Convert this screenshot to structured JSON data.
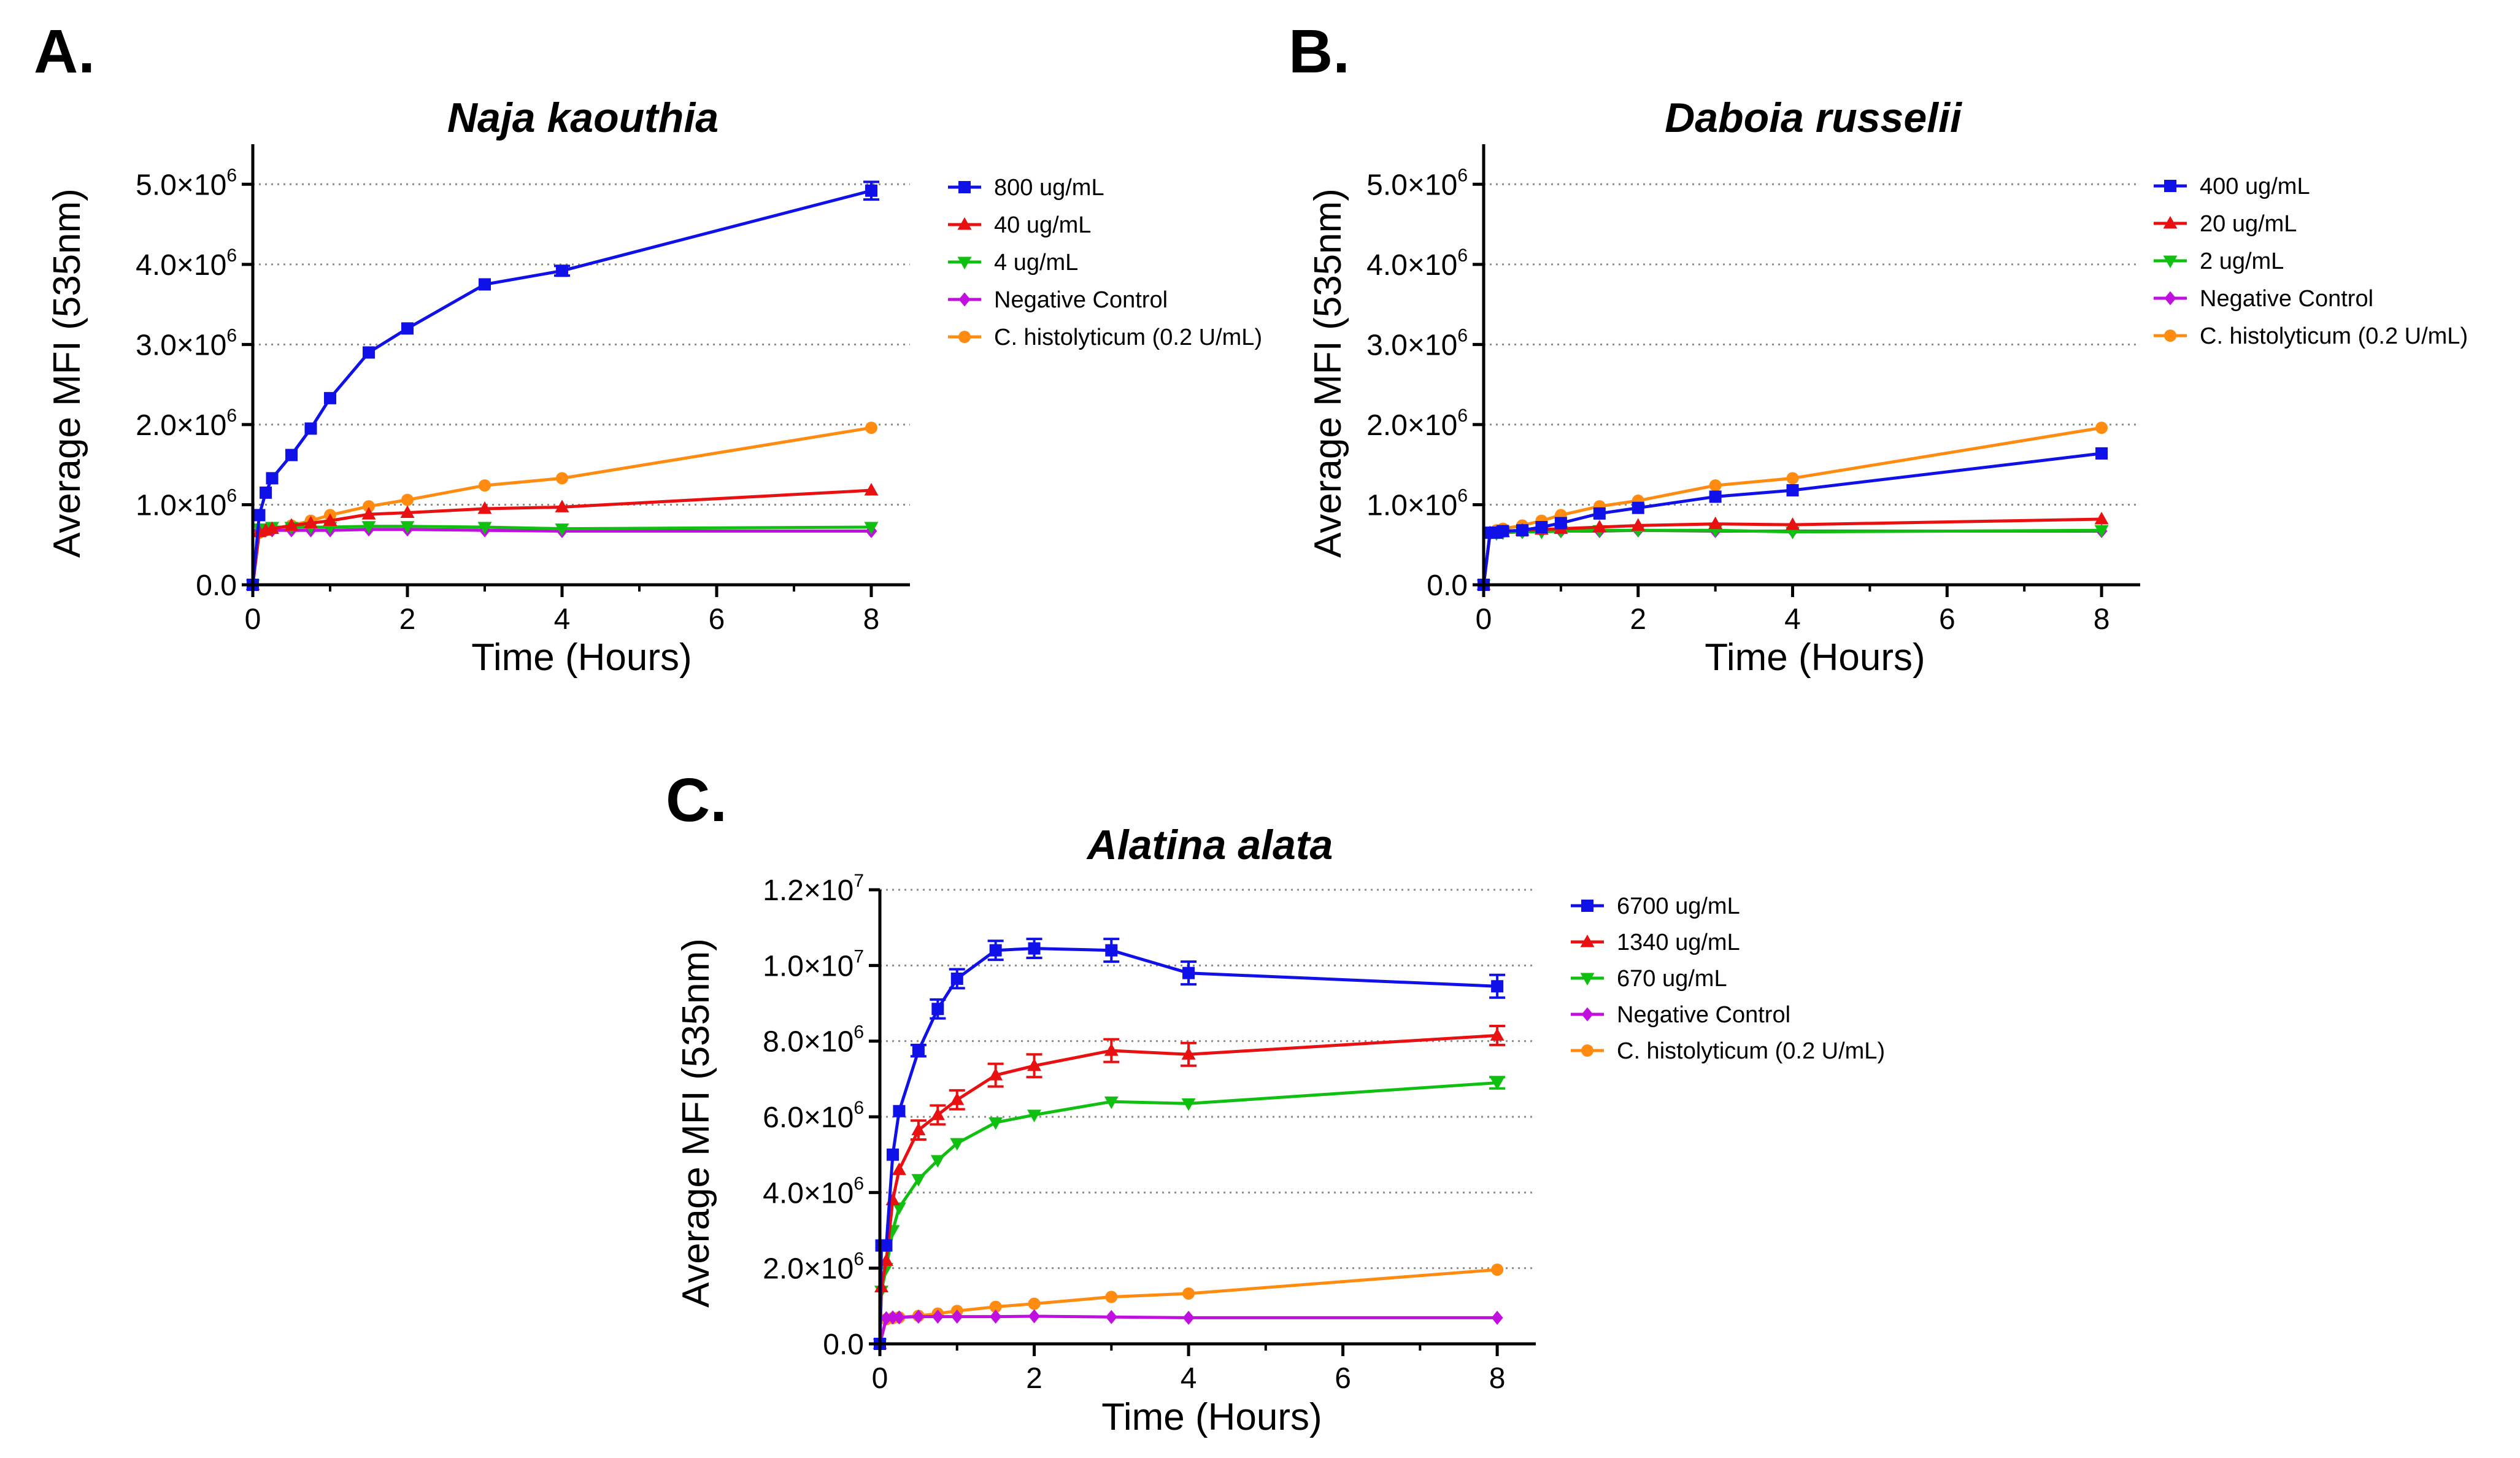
{
  "chart_data": [
    {
      "panel": "A.",
      "type": "line",
      "title": "Naja kaouthia",
      "xlabel": "Time (Hours)",
      "ylabel": "Average MFI (535nm)",
      "xlim": [
        0,
        8.5
      ],
      "ylim": [
        0,
        5500000
      ],
      "x_ticks": [
        0,
        2,
        4,
        6,
        8
      ],
      "x_tick_labels": [
        "0",
        "2",
        "4",
        "6",
        "8"
      ],
      "y_ticks": [
        {
          "value": 0,
          "mant": "0.0",
          "exp": ""
        },
        {
          "value": 1000000,
          "mant": "1.0×10",
          "exp": "6"
        },
        {
          "value": 2000000,
          "mant": "2.0×10",
          "exp": "6"
        },
        {
          "value": 3000000,
          "mant": "3.0×10",
          "exp": "6"
        },
        {
          "value": 4000000,
          "mant": "4.0×10",
          "exp": "6"
        },
        {
          "value": 5000000,
          "mant": "5.0×10",
          "exp": "6"
        }
      ],
      "grid": "horizontal dotted",
      "legend_position": "right",
      "series": [
        {
          "name": "800 ug/mL",
          "color": "#1010e8",
          "marker": "square",
          "x": [
            0,
            0.083,
            0.167,
            0.25,
            0.5,
            0.75,
            1,
            1.5,
            2,
            3,
            4,
            8
          ],
          "y": [
            0,
            870000,
            1150000,
            1330000,
            1620000,
            1950000,
            2330000,
            2900000,
            3200000,
            3750000,
            3920000,
            4920000
          ],
          "err": [
            0,
            0,
            0,
            0,
            0,
            0,
            0,
            0,
            0,
            0,
            60000,
            110000
          ]
        },
        {
          "name": "40 ug/mL",
          "color": "#e81010",
          "marker": "triangle-up",
          "x": [
            0,
            0.083,
            0.167,
            0.25,
            0.5,
            0.75,
            1,
            1.5,
            2,
            3,
            4,
            8
          ],
          "y": [
            0,
            660000,
            680000,
            700000,
            740000,
            770000,
            800000,
            880000,
            900000,
            950000,
            970000,
            1180000
          ]
        },
        {
          "name": "4 ug/mL",
          "color": "#10c010",
          "marker": "triangle-down",
          "x": [
            0,
            0.083,
            0.167,
            0.25,
            0.5,
            0.75,
            1,
            1.5,
            2,
            3,
            4,
            8
          ],
          "y": [
            0,
            700000,
            700000,
            720000,
            720000,
            720000,
            720000,
            730000,
            730000,
            720000,
            700000,
            720000
          ]
        },
        {
          "name": "Negative Control",
          "color": "#c010e0",
          "marker": "diamond",
          "x": [
            0,
            0.083,
            0.167,
            0.25,
            0.5,
            0.75,
            1,
            1.5,
            2,
            3,
            4,
            8
          ],
          "y": [
            0,
            680000,
            680000,
            680000,
            680000,
            680000,
            680000,
            690000,
            690000,
            680000,
            670000,
            670000
          ]
        },
        {
          "name": "C. histolyticum (0.2 U/mL)",
          "color": "#ff8c10",
          "marker": "circle",
          "x": [
            0,
            0.083,
            0.167,
            0.25,
            0.5,
            0.75,
            1,
            1.5,
            2,
            3,
            4,
            8
          ],
          "y": [
            0,
            650000,
            680000,
            700000,
            740000,
            800000,
            870000,
            980000,
            1060000,
            1240000,
            1330000,
            1960000
          ]
        }
      ]
    },
    {
      "panel": "B.",
      "type": "line",
      "title": "Daboia russelii",
      "xlabel": "Time (Hours)",
      "ylabel": "Average MFI (535nm)",
      "xlim": [
        0,
        8.5
      ],
      "ylim": [
        0,
        5500000
      ],
      "x_ticks": [
        0,
        2,
        4,
        6,
        8
      ],
      "x_tick_labels": [
        "0",
        "2",
        "4",
        "6",
        "8"
      ],
      "y_ticks": [
        {
          "value": 0,
          "mant": "0.0",
          "exp": ""
        },
        {
          "value": 1000000,
          "mant": "1.0×10",
          "exp": "6"
        },
        {
          "value": 2000000,
          "mant": "2.0×10",
          "exp": "6"
        },
        {
          "value": 3000000,
          "mant": "3.0×10",
          "exp": "6"
        },
        {
          "value": 4000000,
          "mant": "4.0×10",
          "exp": "6"
        },
        {
          "value": 5000000,
          "mant": "5.0×10",
          "exp": "6"
        }
      ],
      "grid": "horizontal dotted",
      "legend_position": "right",
      "series": [
        {
          "name": "400 ug/mL",
          "color": "#1010e8",
          "marker": "square",
          "x": [
            0,
            0.083,
            0.167,
            0.25,
            0.5,
            0.75,
            1,
            1.5,
            2,
            3,
            4,
            8
          ],
          "y": [
            0,
            650000,
            650000,
            670000,
            680000,
            720000,
            770000,
            890000,
            960000,
            1100000,
            1180000,
            1640000
          ]
        },
        {
          "name": "20 ug/mL",
          "color": "#e81010",
          "marker": "triangle-up",
          "x": [
            0,
            0.083,
            0.167,
            0.25,
            0.5,
            0.75,
            1,
            1.5,
            2,
            3,
            4,
            8
          ],
          "y": [
            0,
            640000,
            650000,
            660000,
            680000,
            690000,
            700000,
            720000,
            740000,
            760000,
            750000,
            820000
          ]
        },
        {
          "name": "2 ug/mL",
          "color": "#10c010",
          "marker": "triangle-down",
          "x": [
            0,
            0.083,
            0.167,
            0.25,
            0.5,
            0.75,
            1,
            1.5,
            2,
            3,
            4,
            8
          ],
          "y": [
            0,
            640000,
            640000,
            650000,
            660000,
            660000,
            670000,
            680000,
            680000,
            680000,
            660000,
            680000
          ]
        },
        {
          "name": "Negative Control",
          "color": "#c010e0",
          "marker": "diamond",
          "x": [
            0,
            0.083,
            0.167,
            0.25,
            0.5,
            0.75,
            1,
            1.5,
            2,
            3,
            4,
            8
          ],
          "y": [
            0,
            650000,
            650000,
            660000,
            660000,
            670000,
            670000,
            670000,
            680000,
            670000,
            670000,
            670000
          ]
        },
        {
          "name": "C. histolyticum (0.2 U/mL)",
          "color": "#ff8c10",
          "marker": "circle",
          "x": [
            0,
            0.083,
            0.167,
            0.25,
            0.5,
            0.75,
            1,
            1.5,
            2,
            3,
            4,
            8
          ],
          "y": [
            0,
            650000,
            680000,
            700000,
            740000,
            800000,
            870000,
            980000,
            1050000,
            1240000,
            1330000,
            1960000
          ]
        }
      ]
    },
    {
      "panel": "C.",
      "type": "line",
      "title": "Alatina alata",
      "xlabel": "Time (Hours)",
      "ylabel": "Average MFI (535nm)",
      "xlim": [
        0,
        8.5
      ],
      "ylim": [
        0,
        12000000
      ],
      "x_ticks": [
        0,
        2,
        4,
        6,
        8
      ],
      "x_tick_labels": [
        "0",
        "2",
        "4",
        "6",
        "8"
      ],
      "y_ticks": [
        {
          "value": 0,
          "mant": "0.0",
          "exp": ""
        },
        {
          "value": 2000000,
          "mant": "2.0×10",
          "exp": "6"
        },
        {
          "value": 4000000,
          "mant": "4.0×10",
          "exp": "6"
        },
        {
          "value": 6000000,
          "mant": "6.0×10",
          "exp": "6"
        },
        {
          "value": 8000000,
          "mant": "8.0×10",
          "exp": "6"
        },
        {
          "value": 10000000,
          "mant": "1.0×10",
          "exp": "7"
        },
        {
          "value": 12000000,
          "mant": "1.2×10",
          "exp": "7"
        }
      ],
      "grid": "horizontal dotted",
      "legend_position": "right",
      "series": [
        {
          "name": "6700 ug/mL",
          "color": "#1010e8",
          "marker": "square",
          "x": [
            0,
            0.02,
            0.083,
            0.167,
            0.25,
            0.5,
            0.75,
            1,
            1.5,
            2,
            3,
            4,
            8
          ],
          "y": [
            0,
            2600000,
            2600000,
            5000000,
            6150000,
            7750000,
            8850000,
            9650000,
            10400000,
            10450000,
            10400000,
            9800000,
            9450000
          ],
          "err": [
            0,
            0,
            0,
            0,
            0,
            150000,
            250000,
            250000,
            250000,
            250000,
            300000,
            300000,
            300000
          ]
        },
        {
          "name": "1340 ug/mL",
          "color": "#e81010",
          "marker": "triangle-up",
          "x": [
            0,
            0.02,
            0.083,
            0.167,
            0.25,
            0.5,
            0.75,
            1,
            1.5,
            2,
            3,
            4,
            8
          ],
          "y": [
            0,
            1500000,
            2200000,
            3800000,
            4600000,
            5650000,
            6050000,
            6450000,
            7100000,
            7350000,
            7750000,
            7650000,
            8150000
          ],
          "err": [
            0,
            0,
            0,
            0,
            0,
            250000,
            250000,
            250000,
            300000,
            300000,
            300000,
            300000,
            250000
          ]
        },
        {
          "name": "670 ug/mL",
          "color": "#10c010",
          "marker": "triangle-down",
          "x": [
            0,
            0.02,
            0.083,
            0.167,
            0.25,
            0.5,
            0.75,
            1,
            1.5,
            2,
            3,
            4,
            8
          ],
          "y": [
            0,
            1400000,
            2000000,
            3000000,
            3600000,
            4350000,
            4850000,
            5300000,
            5850000,
            6050000,
            6400000,
            6350000,
            6900000
          ],
          "err": [
            0,
            0,
            0,
            0,
            0,
            0,
            0,
            0,
            0,
            0,
            0,
            0,
            150000
          ]
        },
        {
          "name": "Negative Control",
          "color": "#c010e0",
          "marker": "diamond",
          "x": [
            0,
            0.083,
            0.167,
            0.25,
            0.5,
            0.75,
            1,
            1.5,
            2,
            3,
            4,
            8
          ],
          "y": [
            0,
            680000,
            700000,
            700000,
            720000,
            720000,
            720000,
            720000,
            730000,
            710000,
            690000,
            690000
          ]
        },
        {
          "name": "C. histolyticum (0.2 U/mL)",
          "color": "#ff8c10",
          "marker": "circle",
          "x": [
            0,
            0.083,
            0.167,
            0.25,
            0.5,
            0.75,
            1,
            1.5,
            2,
            3,
            4,
            8
          ],
          "y": [
            0,
            650000,
            680000,
            700000,
            740000,
            800000,
            870000,
            980000,
            1060000,
            1240000,
            1330000,
            1960000
          ]
        }
      ]
    }
  ]
}
